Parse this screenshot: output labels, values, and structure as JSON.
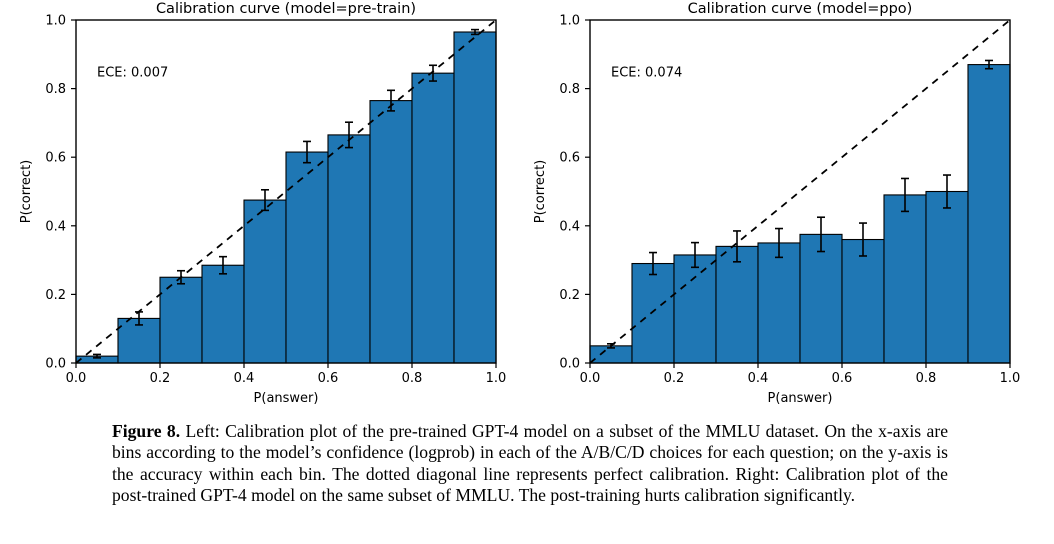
{
  "figure": {
    "caption_label": "Figure 8.",
    "caption_text": "Left: Calibration plot of the pre-trained GPT-4 model on a subset of the MMLU dataset. On the x-axis are bins according to the model’s confidence (logprob) in each of the A/B/C/D choices for each question; on the y-axis is the accuracy within each bin. The dotted diagonal line represents perfect calibration. Right: Calibration plot of the post-trained GPT-4 model on the same subset of MMLU. The post-training hurts calibration significantly."
  },
  "chart_data": [
    {
      "type": "bar",
      "title": "Calibration curve (model=pre-train)",
      "annotation": "ECE: 0.007",
      "xlabel": "P(answer)",
      "ylabel": "P(correct)",
      "xlim": [
        0.0,
        1.0
      ],
      "ylim": [
        0.0,
        1.0
      ],
      "xticks": [
        "0.0",
        "0.2",
        "0.4",
        "0.6",
        "0.8",
        "1.0"
      ],
      "yticks": [
        "0.0",
        "0.2",
        "0.4",
        "0.6",
        "0.8",
        "1.0"
      ],
      "bin_edges": [
        0.0,
        0.1,
        0.2,
        0.3,
        0.4,
        0.5,
        0.6,
        0.7,
        0.8,
        0.9,
        1.0
      ],
      "values": [
        0.02,
        0.13,
        0.25,
        0.285,
        0.475,
        0.615,
        0.665,
        0.765,
        0.845,
        0.965
      ],
      "errors": [
        0.005,
        0.019,
        0.019,
        0.025,
        0.03,
        0.031,
        0.037,
        0.03,
        0.023,
        0.007
      ],
      "diagonal": true,
      "grid": false,
      "bar_color": "#1f77b4",
      "bar_edge_color": "#000000",
      "line_color": "#000000"
    },
    {
      "type": "bar",
      "title": "Calibration curve (model=ppo)",
      "annotation": "ECE: 0.074",
      "xlabel": "P(answer)",
      "ylabel": "P(correct)",
      "xlim": [
        0.0,
        1.0
      ],
      "ylim": [
        0.0,
        1.0
      ],
      "xticks": [
        "0.0",
        "0.2",
        "0.4",
        "0.6",
        "0.8",
        "1.0"
      ],
      "yticks": [
        "0.0",
        "0.2",
        "0.4",
        "0.6",
        "0.8",
        "1.0"
      ],
      "bin_edges": [
        0.0,
        0.1,
        0.2,
        0.3,
        0.4,
        0.5,
        0.6,
        0.7,
        0.8,
        0.9,
        1.0
      ],
      "values": [
        0.05,
        0.29,
        0.315,
        0.34,
        0.35,
        0.375,
        0.36,
        0.49,
        0.5,
        0.87
      ],
      "errors": [
        0.006,
        0.032,
        0.036,
        0.045,
        0.042,
        0.05,
        0.048,
        0.048,
        0.048,
        0.012
      ],
      "diagonal": true,
      "grid": false,
      "bar_color": "#1f77b4",
      "bar_edge_color": "#000000",
      "line_color": "#000000"
    }
  ]
}
